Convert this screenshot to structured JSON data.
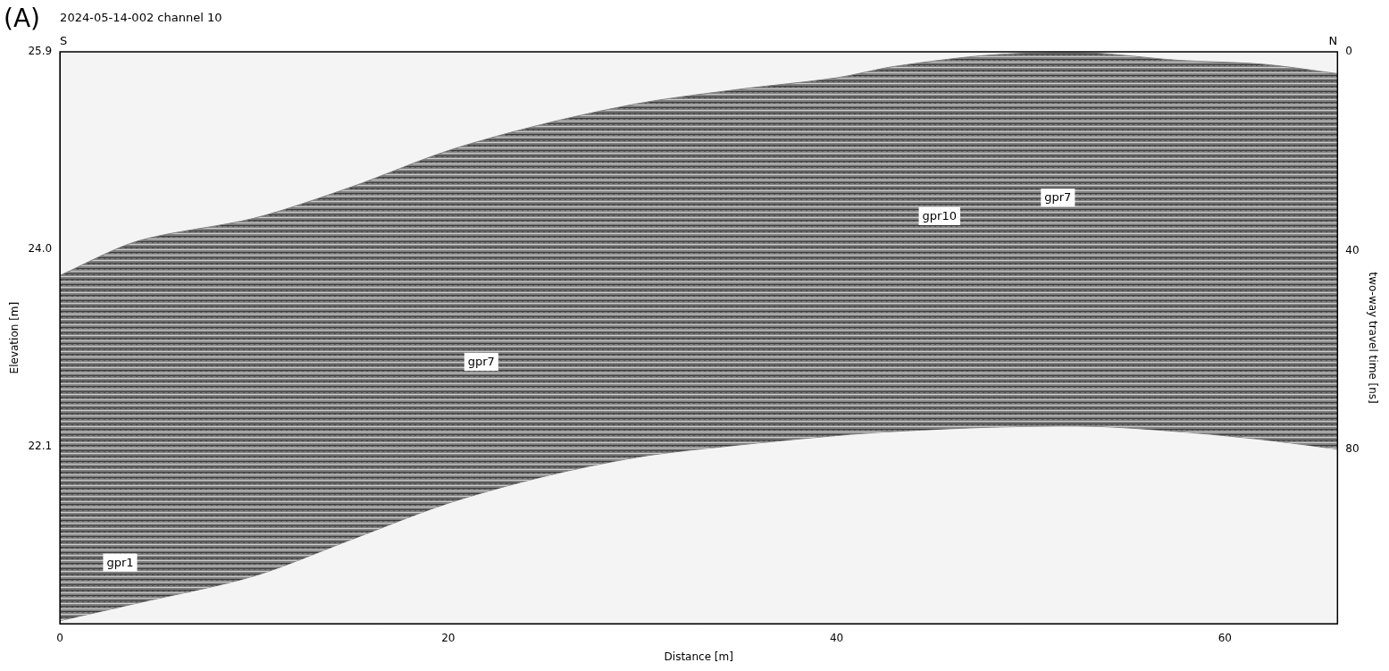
{
  "chart_data": {
    "type": "line",
    "title": "(A)",
    "subtitle": "2024-05-14-002 channel 10",
    "direction_labels": [
      "S",
      "N"
    ],
    "x_label": "Distance [m]",
    "y_label": "Elevation [m]",
    "y2_label": "two-way travel time [ns]",
    "x": [
      0,
      4,
      10,
      15,
      20,
      25,
      30,
      35,
      40,
      43,
      48,
      53,
      57.5,
      62,
      65.8
    ],
    "series": [
      {
        "color": "#808080",
        "values": [
          23.75,
          24.08,
          24.3,
          24.6,
          24.95,
          25.21,
          25.41,
          25.54,
          25.65,
          25.76,
          25.87,
          25.89,
          25.82,
          25.78,
          25.69
        ]
      },
      {
        "color": "#808080",
        "values": [
          20.43,
          20.6,
          20.86,
          21.21,
          21.56,
          21.82,
          22.01,
          22.12,
          22.21,
          22.25,
          22.29,
          22.3,
          22.25,
          22.17,
          22.08
        ]
      }
    ],
    "xlim": [
      0,
      65.8
    ],
    "xticks": [
      0,
      20,
      40,
      60
    ],
    "ylim": [
      20.4,
      25.9
    ],
    "yticks": [
      22.1,
      {
        "value": 24.0,
        "label": "24.0"
      },
      25.9
    ],
    "y2lim": [
      0,
      115
    ],
    "y2ticks": [
      0,
      40,
      80
    ],
    "annotations": [
      {
        "text": "gpr1",
        "x": 3.1,
        "y": 20.99
      },
      {
        "text": "gpr7",
        "x": 21.7,
        "y": 22.92
      },
      {
        "text": "gpr10",
        "x": 45.3,
        "y": 24.32
      },
      {
        "text": "gpr7",
        "x": 51.4,
        "y": 24.5
      }
    ],
    "grid": false
  }
}
